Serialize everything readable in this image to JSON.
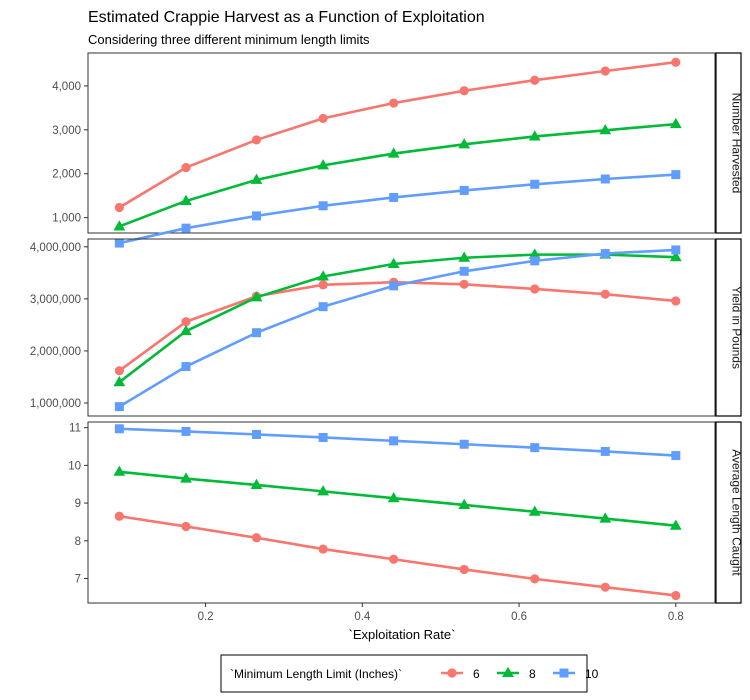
{
  "chart_data": {
    "type": "line",
    "title": "Estimated Crappie Harvest as a Function of Exploitation",
    "subtitle": "Considering three different minimum length limits",
    "xlabel": "`Exploitation Rate`",
    "xlim": [
      0.05,
      0.85
    ],
    "x_ticks": [
      0.2,
      0.4,
      0.6,
      0.8
    ],
    "x_tick_labels": [
      "0.2",
      "0.4",
      "0.6",
      "0.8"
    ],
    "x": [
      0.09,
      0.175,
      0.265,
      0.35,
      0.44,
      0.53,
      0.62,
      0.71,
      0.8
    ],
    "grid": false,
    "legend": {
      "title": "`Minimum Length Limit (Inches)`",
      "placement": "bottom",
      "entries": [
        {
          "label": "6",
          "color": "#F8766D",
          "marker": "circle"
        },
        {
          "label": "8",
          "color": "#00BA38",
          "marker": "triangle"
        },
        {
          "label": "10",
          "color": "#619CFF",
          "marker": "square"
        }
      ]
    },
    "panels": [
      {
        "strip": "Number Harvested",
        "ylim": [
          650,
          4750
        ],
        "y_ticks": [
          1000,
          2000,
          3000,
          4000
        ],
        "y_tick_labels": [
          "1,000",
          "2,000",
          "3,000",
          "4,000"
        ],
        "series": [
          {
            "name": "6",
            "values": [
              1230,
              2140,
              2770,
              3260,
              3610,
              3890,
              4130,
              4340,
              4540
            ]
          },
          {
            "name": "8",
            "values": [
              800,
              1380,
              1860,
              2190,
              2460,
              2670,
              2850,
              2990,
              3130
            ]
          },
          {
            "name": "10",
            "values": [
              420,
              760,
              1040,
              1270,
              1460,
              1620,
              1760,
              1880,
              1980
            ]
          }
        ]
      },
      {
        "strip": "Yield in Pounds",
        "ylim": [
          750000,
          4150000
        ],
        "y_ticks": [
          1000000,
          2000000,
          3000000,
          4000000
        ],
        "y_tick_labels": [
          "1,000,000",
          "2,000,000",
          "3,000,000",
          "4,000,000"
        ],
        "series": [
          {
            "name": "6",
            "values": [
              1620000,
              2560000,
              3050000,
              3270000,
              3320000,
              3280000,
              3190000,
              3090000,
              2960000
            ]
          },
          {
            "name": "8",
            "values": [
              1400000,
              2380000,
              3030000,
              3430000,
              3670000,
              3790000,
              3850000,
              3850000,
              3800000
            ]
          },
          {
            "name": "10",
            "values": [
              930000,
              1700000,
              2350000,
              2850000,
              3250000,
              3530000,
              3730000,
              3870000,
              3940000
            ]
          }
        ]
      },
      {
        "strip": "Average Length Caught",
        "ylim": [
          6.35,
          11.15
        ],
        "y_ticks": [
          7,
          8,
          9,
          10,
          11
        ],
        "y_tick_labels": [
          "7",
          "8",
          "9",
          "10",
          "11"
        ],
        "series": [
          {
            "name": "6",
            "values": [
              8.65,
              8.38,
              8.08,
              7.78,
              7.51,
              7.24,
              6.99,
              6.77,
              6.55
            ]
          },
          {
            "name": "8",
            "values": [
              9.83,
              9.65,
              9.48,
              9.31,
              9.13,
              8.95,
              8.77,
              8.59,
              8.4
            ]
          },
          {
            "name": "10",
            "values": [
              10.97,
              10.9,
              10.82,
              10.74,
              10.65,
              10.56,
              10.47,
              10.37,
              10.26
            ]
          }
        ]
      }
    ]
  }
}
